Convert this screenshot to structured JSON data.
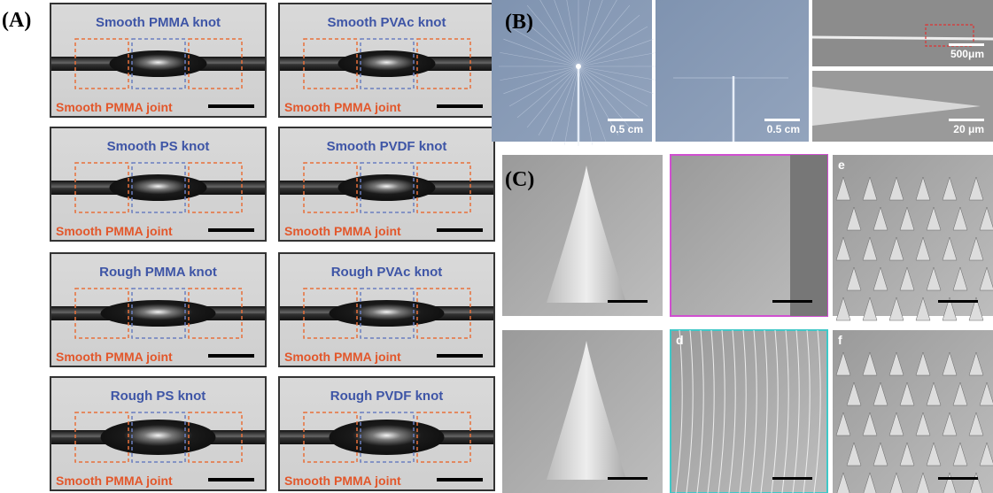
{
  "panel_a": {
    "label": "(A)",
    "images": [
      {
        "title": "Smooth PMMA knot",
        "joint": "Smooth PMMA joint"
      },
      {
        "title": "Smooth PVAc knot",
        "joint": "Smooth PMMA joint"
      },
      {
        "title": "Smooth PS knot",
        "joint": "Smooth PMMA joint"
      },
      {
        "title": "Smooth PVDF knot",
        "joint": "Smooth PMMA joint"
      },
      {
        "title": "Rough PMMA knot",
        "joint": "Smooth PMMA joint"
      },
      {
        "title": "Rough PVAc knot",
        "joint": "Smooth PMMA joint"
      },
      {
        "title": "Rough PS knot",
        "joint": "Smooth PMMA joint"
      },
      {
        "title": "Rough PVDF knot",
        "joint": "Smooth PMMA joint"
      }
    ]
  },
  "panel_b": {
    "label": "(B)",
    "scale_labels": [
      "0.5 cm",
      "0.5 cm",
      "500μm",
      "20 μm"
    ]
  },
  "panel_c": {
    "label": "(C)",
    "image_labels": [
      "e",
      "d",
      "f"
    ]
  }
}
